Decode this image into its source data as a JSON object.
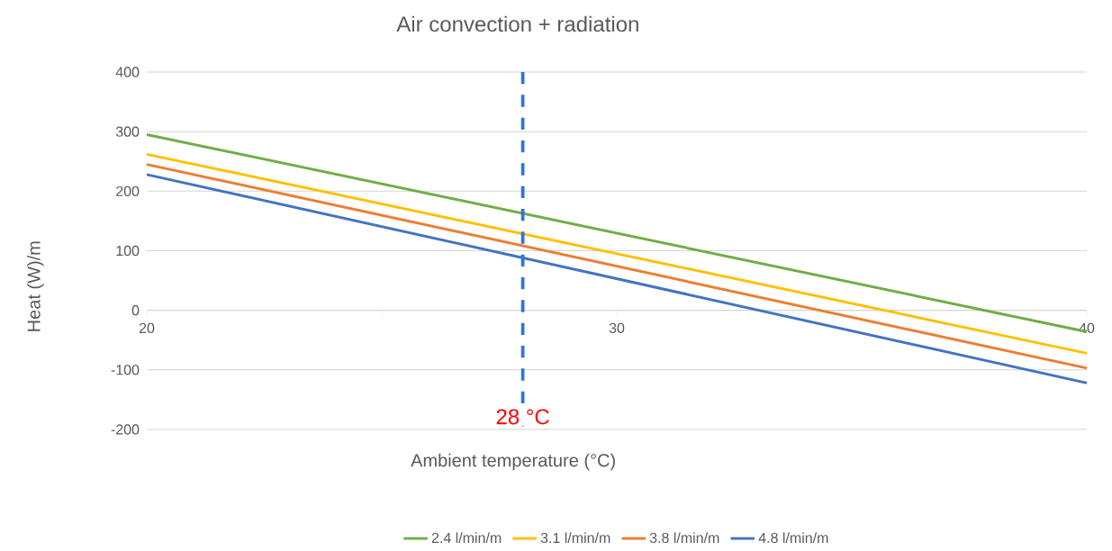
{
  "chart_data": {
    "type": "line",
    "title": "Air convection + radiation",
    "xlabel": "Ambient temperature (°C)",
    "ylabel": "Heat (W)/m",
    "x": [
      20,
      40
    ],
    "series": [
      {
        "name": "2.4 l/min/m",
        "color": "#70ad47",
        "values": [
          295,
          -36
        ]
      },
      {
        "name": "3.1 l/min/m",
        "color": "#ffc000",
        "values": [
          262,
          -72
        ]
      },
      {
        "name": "3.8 l/min/m",
        "color": "#ed7d31",
        "values": [
          245,
          -97
        ]
      },
      {
        "name": "4.8 l/min/m",
        "color": "#4472c4",
        "values": [
          228,
          -122
        ]
      }
    ],
    "xlim": [
      20,
      40
    ],
    "xticks": [
      20,
      {
        "value": 25,
        "label": null
      },
      30,
      {
        "value": 35,
        "label": null
      },
      40
    ],
    "ylim": [
      -200,
      400
    ],
    "yticks": [
      -200,
      -100,
      0,
      100,
      200,
      300,
      400
    ],
    "ref_lines": [
      {
        "axis": "x",
        "value": 28,
        "label": "28 °C",
        "color": "#2e75d6",
        "line_style": "dashed"
      }
    ],
    "grid": "y",
    "legend": "bottom",
    "marker": "none",
    "line_style": "solid"
  }
}
